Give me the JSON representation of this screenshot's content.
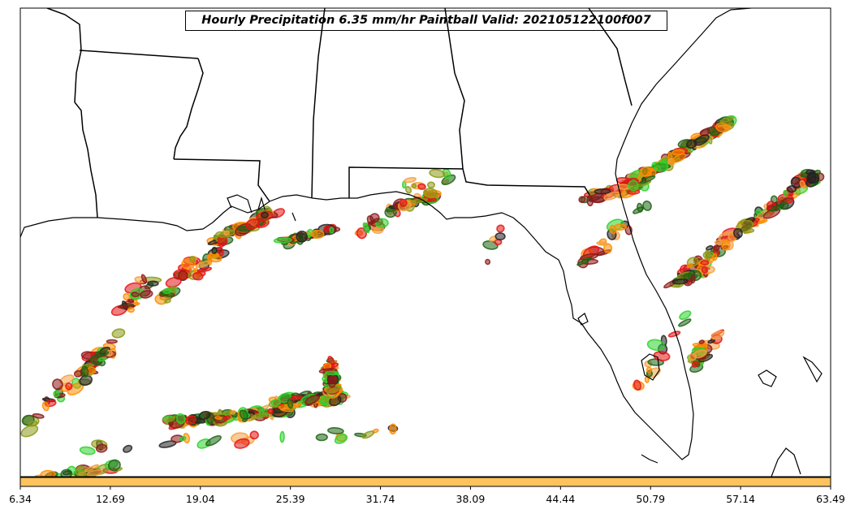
{
  "title": "Hourly Precipitation 6.35 mm/hr Paintball Valid: 202105122100f007",
  "colorbar": {
    "color": "#ffc35e",
    "ticks": [
      "6.34",
      "12.69",
      "19.04",
      "25.39",
      "31.74",
      "38.09",
      "44.44",
      "50.79",
      "57.14",
      "63.49"
    ]
  },
  "palette": {
    "dark_red": "#8b1a1a",
    "red": "#e41414",
    "orange": "#ff8c00",
    "light_orange": "#f5a040",
    "olive": "#8c9a18",
    "dark_green": "#1e6414",
    "green": "#2ed12e",
    "black": "#222222"
  }
}
